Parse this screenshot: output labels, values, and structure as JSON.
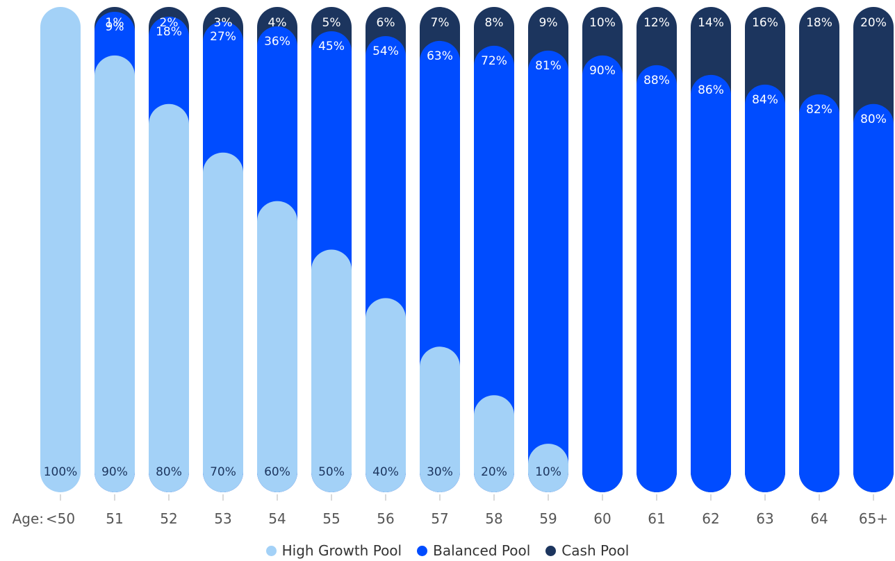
{
  "colors": {
    "high_growth": "#a3d1f7",
    "balanced": "#004cff",
    "cash": "#1c355e",
    "label_dark": "#1c355e",
    "label_light": "#ffffff",
    "axis_text": "#555555"
  },
  "legend": {
    "items": [
      {
        "label": "High Growth Pool",
        "color_key": "high_growth"
      },
      {
        "label": "Balanced Pool",
        "color_key": "balanced"
      },
      {
        "label": "Cash Pool",
        "color_key": "cash"
      }
    ]
  },
  "chart_data": {
    "type": "bar",
    "stacked": true,
    "x_axis_prefix": "Age:",
    "categories": [
      "<50",
      "51",
      "52",
      "53",
      "54",
      "55",
      "56",
      "57",
      "58",
      "59",
      "60",
      "61",
      "62",
      "63",
      "64",
      "65+"
    ],
    "ylim": [
      0,
      100
    ],
    "grid": false,
    "legend_position": "bottom",
    "series": [
      {
        "name": "High Growth Pool",
        "values": [
          100,
          90,
          80,
          70,
          60,
          50,
          40,
          30,
          20,
          10,
          0,
          0,
          0,
          0,
          0,
          0
        ],
        "labels": [
          "100%",
          "90%",
          "80%",
          "70%",
          "60%",
          "50%",
          "40%",
          "30%",
          "20%",
          "10%",
          "",
          "",
          "",
          "",
          "",
          ""
        ]
      },
      {
        "name": "Balanced Pool",
        "values": [
          0,
          9,
          18,
          27,
          36,
          45,
          54,
          63,
          72,
          81,
          90,
          88,
          86,
          84,
          82,
          80
        ],
        "labels": [
          "",
          "9%",
          "18%",
          "27%",
          "36%",
          "45%",
          "54%",
          "63%",
          "72%",
          "81%",
          "90%",
          "88%",
          "86%",
          "84%",
          "82%",
          "80%"
        ]
      },
      {
        "name": "Cash Pool",
        "values": [
          0,
          1,
          2,
          3,
          4,
          5,
          6,
          7,
          8,
          9,
          10,
          12,
          14,
          16,
          18,
          20
        ],
        "labels": [
          "",
          "1%",
          "2%",
          "3%",
          "4%",
          "5%",
          "6%",
          "7%",
          "8%",
          "9%",
          "10%",
          "12%",
          "14%",
          "16%",
          "18%",
          "20%"
        ]
      }
    ]
  }
}
